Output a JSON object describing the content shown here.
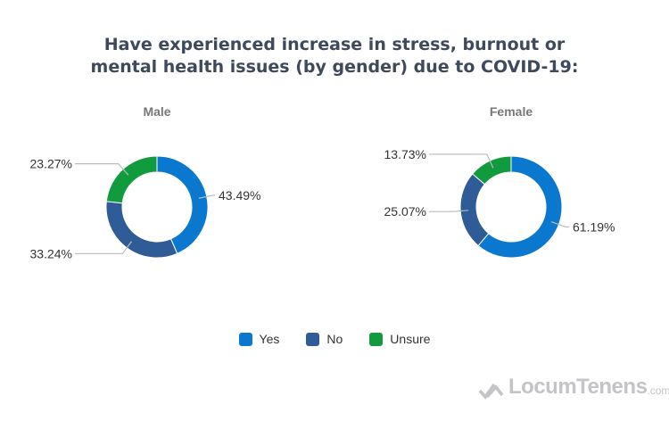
{
  "chart_data": [
    {
      "type": "pie",
      "donut": true,
      "title": "Male",
      "categories": [
        "Yes",
        "No",
        "Unsure"
      ],
      "values": [
        43.49,
        33.24,
        23.27
      ],
      "labels": [
        "43.49%",
        "33.24%",
        "23.27%"
      ]
    },
    {
      "type": "pie",
      "donut": true,
      "title": "Female",
      "categories": [
        "Yes",
        "No",
        "Unsure"
      ],
      "values": [
        61.19,
        25.07,
        13.73
      ],
      "labels": [
        "61.19%",
        "25.07%",
        "13.73%"
      ]
    }
  ],
  "title_line1": "Have experienced increase in stress, burnout or",
  "title_line2": "mental health issues (by gender) due to COVID-19:",
  "legend": [
    {
      "label": "Yes",
      "color": "#0b78d0"
    },
    {
      "label": "No",
      "color": "#2f5c96"
    },
    {
      "label": "Unsure",
      "color": "#119a3e"
    }
  ],
  "watermark": {
    "brand": "LocumTenens",
    "suffix": ".com"
  }
}
